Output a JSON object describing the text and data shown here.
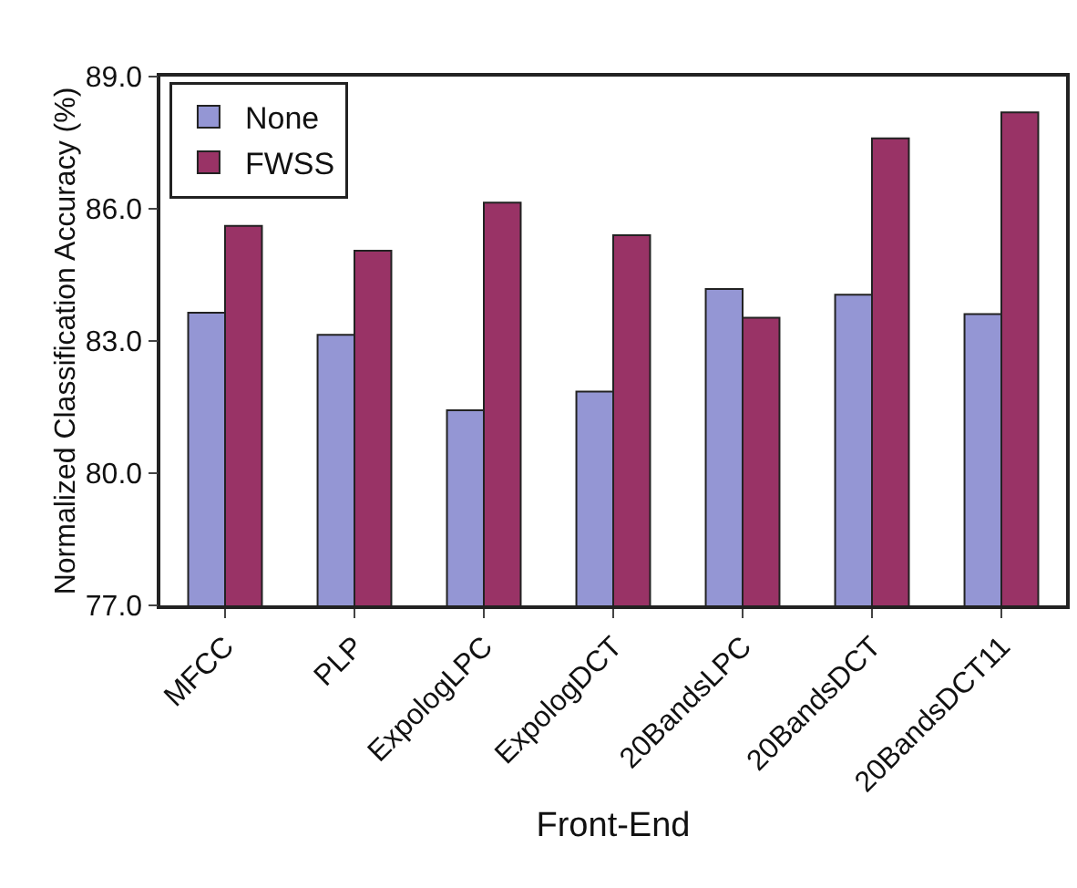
{
  "chart_data": {
    "type": "bar",
    "xlabel": "Front-End",
    "ylabel": "Normalized Classification Accuracy (%)",
    "categories": [
      "MFCC",
      "PLP",
      "ExpologLPC",
      "ExpologDCT",
      "20BandsLPC",
      "20BandsDCT",
      "20BandsDCT11"
    ],
    "series": [
      {
        "name": "None",
        "color": "#9496d4",
        "values": [
          83.64,
          83.14,
          81.43,
          81.85,
          84.18,
          84.05,
          83.61
        ]
      },
      {
        "name": "FWSS",
        "color": "#993366",
        "values": [
          85.61,
          85.05,
          86.14,
          85.4,
          83.53,
          87.6,
          88.19
        ]
      }
    ],
    "ylim": [
      77,
      89
    ],
    "yticks": [
      {
        "value": 77,
        "label": "77.0"
      },
      {
        "value": 80,
        "label": "80.0"
      },
      {
        "value": 83,
        "label": "83.0"
      },
      {
        "value": 86,
        "label": "86.0"
      },
      {
        "value": 89,
        "label": "89.0"
      }
    ],
    "grid": false,
    "legend": "top left"
  }
}
